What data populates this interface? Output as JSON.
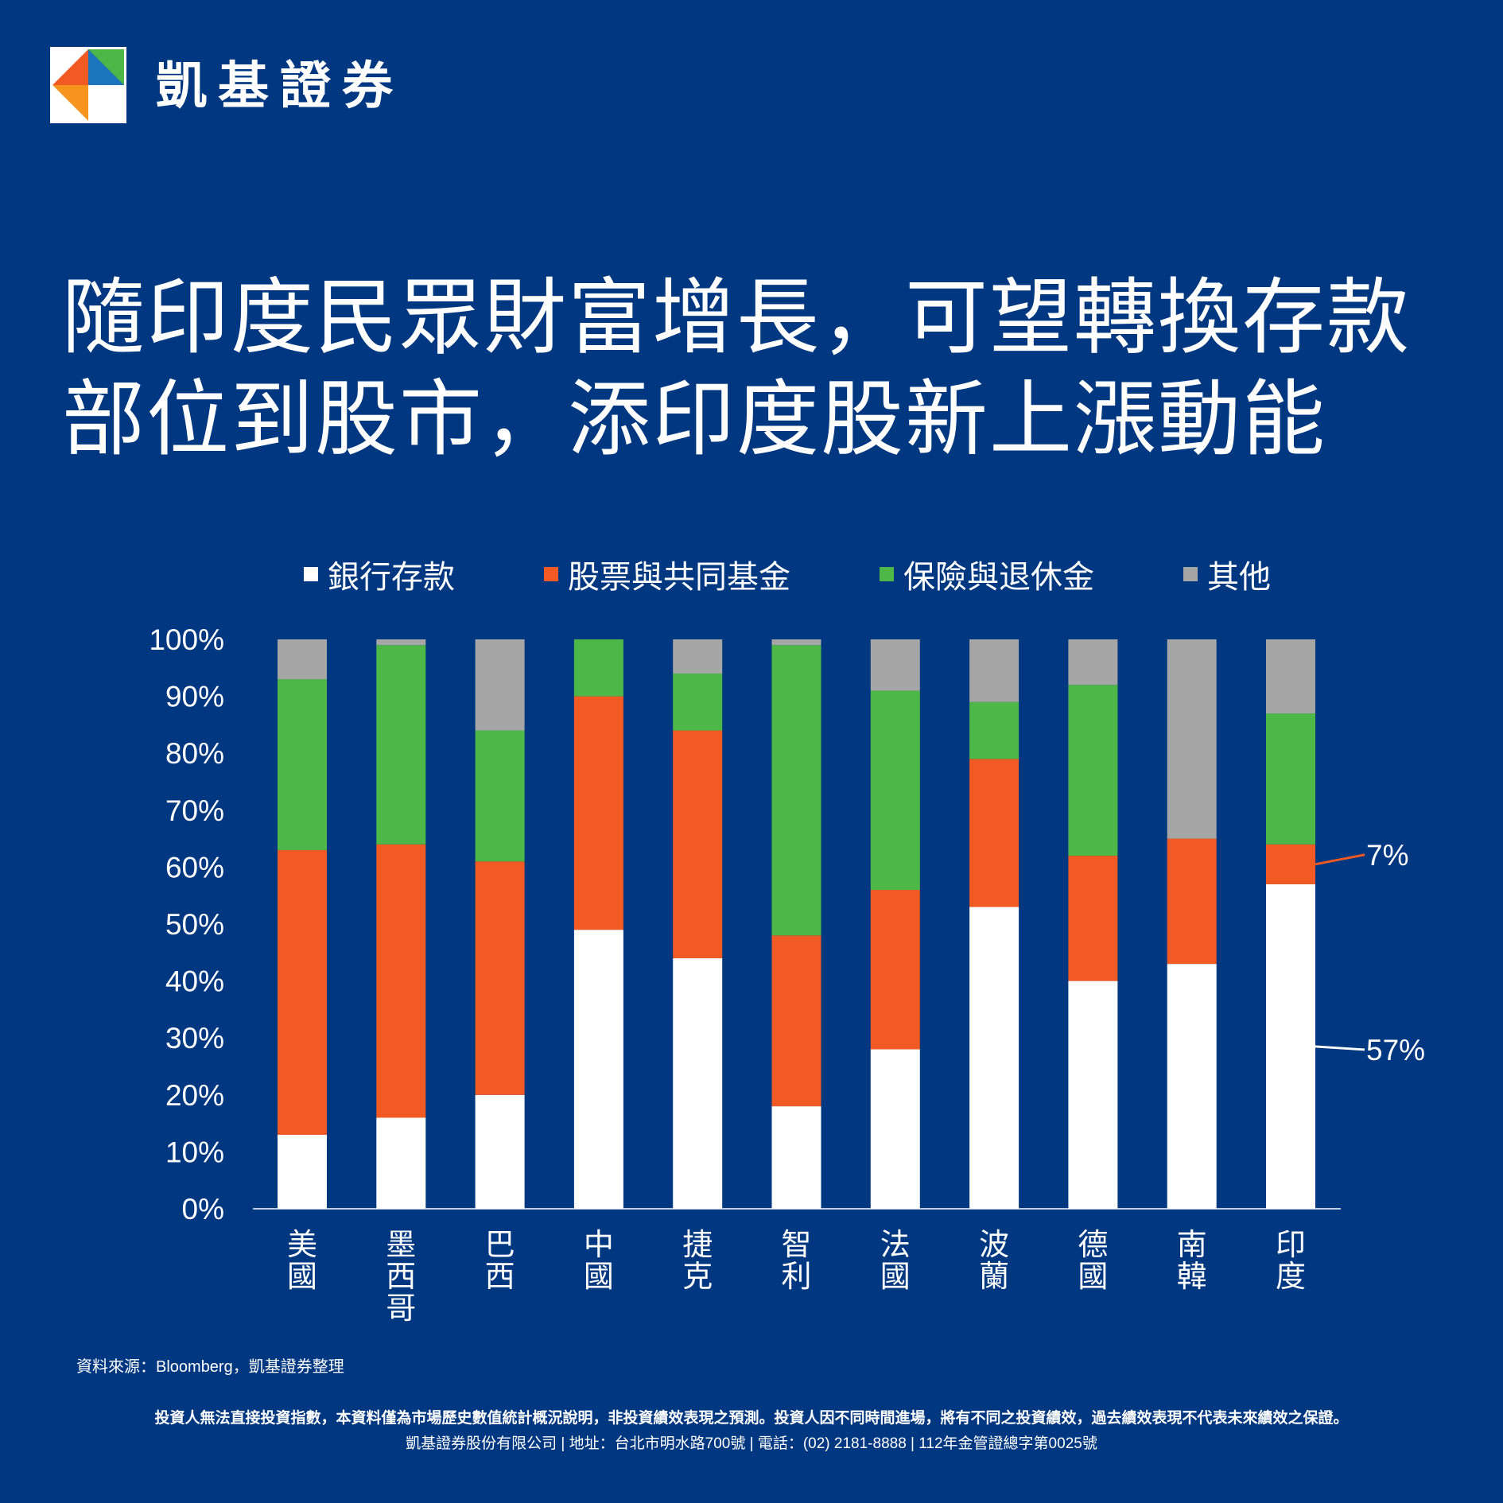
{
  "brand": {
    "name": "凱基證券",
    "logo_icon": "kgi-logo-icon"
  },
  "title": {
    "line1": "隨印度民眾財富增長，可望轉換存款",
    "line2": "部位到股市，添印度股新上漲動能"
  },
  "chart_data": {
    "type": "bar",
    "stacked": true,
    "categories": [
      "美國",
      "墨西哥",
      "巴西",
      "中國",
      "捷克",
      "智利",
      "法國",
      "波蘭",
      "德國",
      "南韓",
      "印度"
    ],
    "series": [
      {
        "name": "銀行存款",
        "color": "#ffffff",
        "values": [
          13,
          16,
          20,
          49,
          44,
          18,
          28,
          53,
          40,
          43,
          57
        ]
      },
      {
        "name": "股票與共同基金",
        "color": "#f15a22",
        "values": [
          50,
          48,
          41,
          41,
          40,
          30,
          28,
          26,
          22,
          22,
          7
        ]
      },
      {
        "name": "保險與退休金",
        "color": "#4db848",
        "values": [
          30,
          35,
          23,
          10,
          10,
          51,
          35,
          10,
          30,
          0,
          23
        ]
      },
      {
        "name": "其他",
        "color": "#a6a6a6",
        "values": [
          7,
          1,
          16,
          0,
          6,
          1,
          9,
          11,
          8,
          35,
          13
        ]
      }
    ],
    "y_ticks": [
      "0%",
      "10%",
      "20%",
      "30%",
      "40%",
      "50%",
      "60%",
      "70%",
      "80%",
      "90%",
      "100%"
    ],
    "ylim": [
      0,
      100
    ],
    "legend_position": "top",
    "grid": false,
    "annotations": [
      {
        "text": "7%",
        "category": "印度",
        "series": "股票與共同基金",
        "color": "#f15a22"
      },
      {
        "text": "57%",
        "category": "印度",
        "series": "銀行存款",
        "color": "#ffffff"
      }
    ]
  },
  "source": "資料來源：Bloomberg，凱基證券整理",
  "disclaimer": "投資人無法直接投資指數，本資料僅為市場歷史數值統計概況說明，非投資績效表現之預測。投資人因不同時間進場，將有不同之投資績效，過去績效表現不代表未來績效之保證。",
  "footer": "凱基證券股份有限公司 | 地址：台北市明水路700號 | 電話：(02) 2181-8888 | 112年金管證總字第0025號"
}
